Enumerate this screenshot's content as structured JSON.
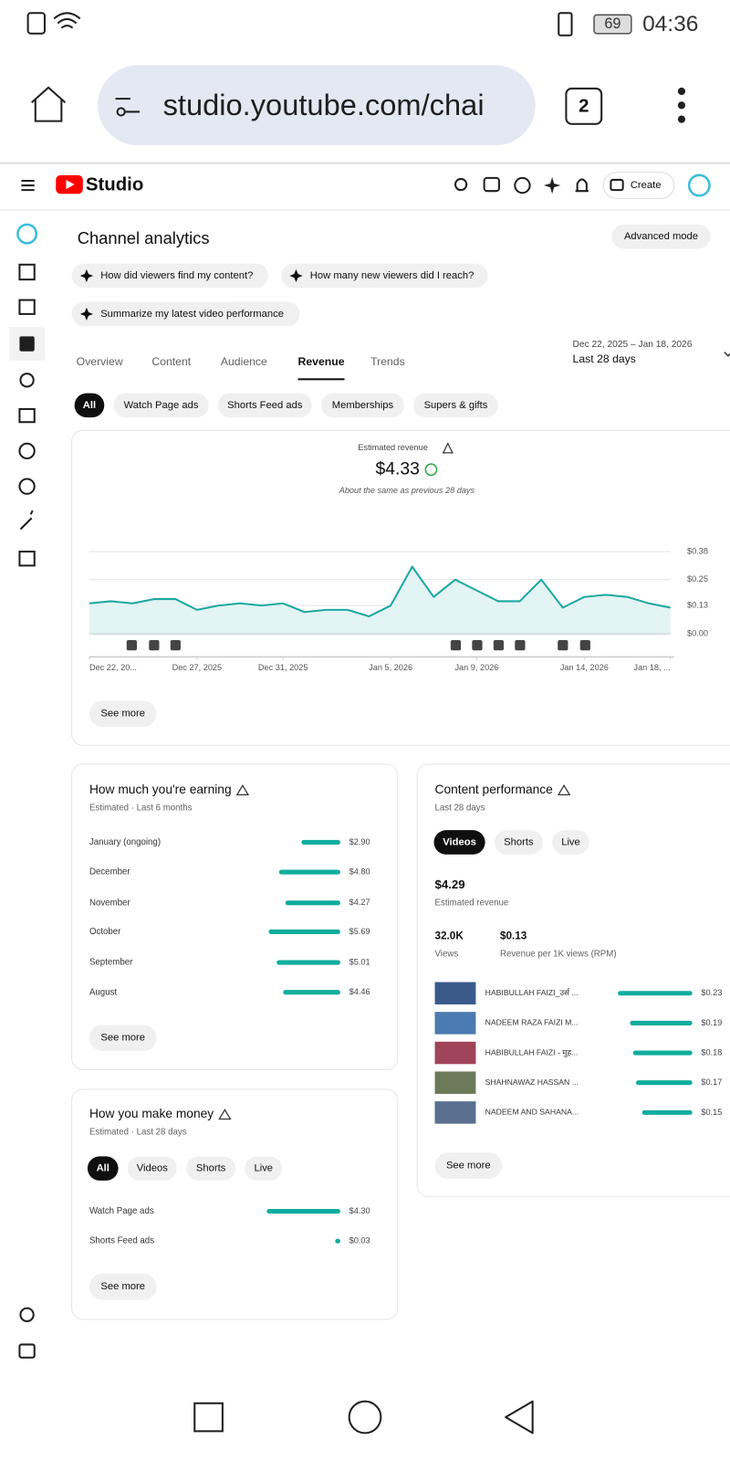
{
  "status_bar": {
    "battery": "69",
    "time": "04:36"
  },
  "browser": {
    "url": "studio.youtube.com/chai",
    "tab_count": "2"
  },
  "header": {
    "logo": "Studio",
    "create": "Create"
  },
  "page": {
    "title": "Channel analytics",
    "advanced_mode": "Advanced mode",
    "prompts": [
      "How did viewers find my content?",
      "How many new viewers did I reach?",
      "Summarize my latest video performance"
    ],
    "tabs": [
      "Overview",
      "Content",
      "Audience",
      "Revenue",
      "Trends"
    ],
    "selected_tab": "Revenue",
    "date_range": {
      "dates": "Dec 22, 2025 – Jan 18, 2026",
      "period": "Last 28 days"
    },
    "filters": [
      "All",
      "Watch Page ads",
      "Shorts Feed ads",
      "Memberships",
      "Supers & gifts"
    ],
    "selected_filter": "All"
  },
  "revenue_card": {
    "label": "Estimated revenue",
    "value": "$4.33",
    "note": "About the same as previous 28 days",
    "see_more": "See more"
  },
  "chart_data": {
    "type": "line",
    "color": "#1ba8a0",
    "area_color": "#e2f4f3",
    "values": [
      0.14,
      0.15,
      0.14,
      0.16,
      0.16,
      0.11,
      0.13,
      0.14,
      0.13,
      0.14,
      0.1,
      0.11,
      0.11,
      0.08,
      0.13,
      0.31,
      0.17,
      0.25,
      0.2,
      0.15,
      0.15,
      0.25,
      0.12,
      0.17,
      0.18,
      0.17,
      0.14,
      0.12
    ],
    "xlim": [
      0,
      27
    ],
    "xticks": [
      {
        "value": 0,
        "label": "Dec 22, 20..."
      },
      {
        "value": 5,
        "label": "Dec 27, 2025"
      },
      {
        "value": 9,
        "label": "Dec 31, 2025"
      },
      {
        "value": 14,
        "label": "Jan 5, 2026"
      },
      {
        "value": 18,
        "label": "Jan 9, 2026"
      },
      {
        "value": 23,
        "label": "Jan 14, 2026"
      },
      {
        "value": 27,
        "label": "Jan 18, ..."
      }
    ],
    "ylim": [
      0,
      0.38
    ],
    "yticks": [
      {
        "value": 0,
        "label": "$0.00"
      },
      {
        "value": 0.13,
        "label": "$0.13"
      },
      {
        "value": 0.25,
        "label": "$0.25"
      },
      {
        "value": 0.38,
        "label": "$0.38"
      }
    ],
    "grid": true
  },
  "earnings": {
    "title": "How much you're earning",
    "subtitle": "Estimated · Last 6 months",
    "color": "#10ad9e",
    "categories": [
      "January (ongoing)",
      "December",
      "November",
      "October",
      "September",
      "August"
    ],
    "values": [
      2.9,
      4.8,
      4.27,
      5.69,
      5.01,
      4.46
    ],
    "value_labels": [
      "$2.90",
      "$4.80",
      "$4.27",
      "$5.69",
      "$5.01",
      "$4.46"
    ],
    "see_more": "See more"
  },
  "content_performance": {
    "title": "Content performance",
    "subtitle": "Last 28 days",
    "tabs": [
      "Videos",
      "Shorts",
      "Live"
    ],
    "selected_tab": "Videos",
    "revenue": {
      "value": "$4.29",
      "label": "Estimated revenue"
    },
    "views": {
      "value": "32.0K",
      "label": "Views"
    },
    "rpm": {
      "value": "$0.13",
      "label": "Revenue per 1K views (RPM)"
    },
    "color": "#10ad9e",
    "categories": [
      "HABIBULLAH FAIZI_उर्स ...",
      "NADEEM RAZA FAIZI M...",
      "HABIBULLAH FAIZI - मुह...",
      "SHAHNAWAZ HASSAN ...",
      "NADEEM AND SAHANA..."
    ],
    "values": [
      0.23,
      0.19,
      0.18,
      0.17,
      0.15
    ],
    "value_labels": [
      "$0.23",
      "$0.19",
      "$0.18",
      "$0.17",
      "$0.15"
    ],
    "see_more": "See more"
  },
  "money": {
    "title": "How you make money",
    "subtitle": "Estimated · Last 28 days",
    "tabs": [
      "All",
      "Videos",
      "Shorts",
      "Live"
    ],
    "selected_tab": "All",
    "color": "#10ad9e",
    "categories": [
      "Watch Page ads",
      "Shorts Feed ads"
    ],
    "values": [
      4.3,
      0.03
    ],
    "value_labels": [
      "$4.30",
      "$0.03"
    ],
    "see_more": "See more"
  }
}
